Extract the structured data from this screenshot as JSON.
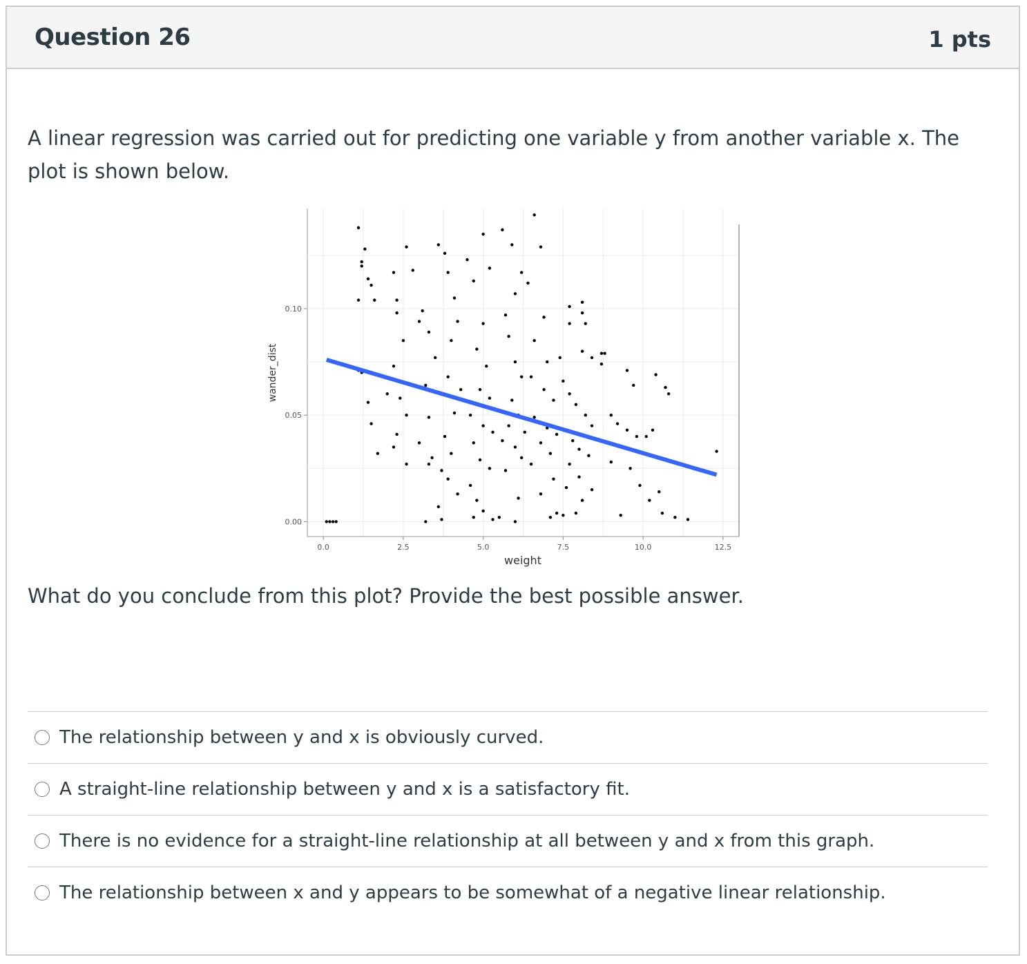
{
  "question": {
    "title": "Question 26",
    "points": "1 pts",
    "prompt": "A linear regression was carried out for predicting one variable y from another variable x. The plot is shown below.",
    "followup": "What do you conclude from this plot? Provide the best possible answer."
  },
  "answers": [
    {
      "label": "The relationship between y and x is obviously curved."
    },
    {
      "label": "A straight-line relationship between y and x is a satisfactory fit."
    },
    {
      "label": "There is no evidence for a straight-line relationship at all between y and x from this graph."
    },
    {
      "label": "The relationship between x and y appears to be somewhat of a negative linear relationship."
    }
  ],
  "chart_data": {
    "type": "scatter",
    "title": "",
    "xlabel": "weight",
    "ylabel": "wander_dist",
    "xlim": [
      -0.5,
      13.0
    ],
    "ylim": [
      -0.007,
      0.147
    ],
    "x_ticks": [
      "0.0",
      "2.5",
      "5.0",
      "7.5",
      "10.0",
      "12.5"
    ],
    "x_tick_values": [
      0.0,
      2.5,
      5.0,
      7.5,
      10.0,
      12.5
    ],
    "y_ticks": [
      "0.00",
      "0.05",
      "0.10"
    ],
    "y_tick_values": [
      0.0,
      0.05,
      0.1
    ],
    "grid": true,
    "regression_line": {
      "x": [
        0.1,
        12.3
      ],
      "y": [
        0.076,
        0.022
      ],
      "color": "#3366ff"
    },
    "points": [
      [
        0.1,
        0.0
      ],
      [
        0.2,
        0.0
      ],
      [
        0.3,
        0.0
      ],
      [
        0.4,
        0.0
      ],
      [
        1.1,
        0.138
      ],
      [
        1.2,
        0.122
      ],
      [
        1.2,
        0.12
      ],
      [
        1.3,
        0.128
      ],
      [
        1.4,
        0.114
      ],
      [
        1.5,
        0.111
      ],
      [
        1.1,
        0.104
      ],
      [
        1.6,
        0.104
      ],
      [
        1.1,
        0.071
      ],
      [
        1.2,
        0.07
      ],
      [
        1.4,
        0.056
      ],
      [
        1.5,
        0.046
      ],
      [
        1.7,
        0.032
      ],
      [
        2.0,
        0.06
      ],
      [
        2.2,
        0.073
      ],
      [
        2.3,
        0.098
      ],
      [
        2.3,
        0.104
      ],
      [
        2.2,
        0.117
      ],
      [
        2.5,
        0.085
      ],
      [
        2.4,
        0.058
      ],
      [
        2.6,
        0.05
      ],
      [
        2.3,
        0.041
      ],
      [
        2.2,
        0.035
      ],
      [
        2.6,
        0.027
      ],
      [
        2.6,
        0.129
      ],
      [
        2.8,
        0.118
      ],
      [
        3.0,
        0.094
      ],
      [
        3.1,
        0.099
      ],
      [
        3.3,
        0.089
      ],
      [
        3.5,
        0.077
      ],
      [
        3.2,
        0.064
      ],
      [
        3.3,
        0.049
      ],
      [
        3.0,
        0.037
      ],
      [
        3.3,
        0.027
      ],
      [
        3.4,
        0.03
      ],
      [
        3.6,
        0.13
      ],
      [
        3.8,
        0.126
      ],
      [
        3.9,
        0.117
      ],
      [
        4.1,
        0.105
      ],
      [
        4.2,
        0.094
      ],
      [
        4.0,
        0.085
      ],
      [
        3.9,
        0.068
      ],
      [
        4.3,
        0.062
      ],
      [
        4.1,
        0.051
      ],
      [
        3.8,
        0.04
      ],
      [
        4.0,
        0.032
      ],
      [
        3.7,
        0.024
      ],
      [
        3.9,
        0.02
      ],
      [
        4.2,
        0.013
      ],
      [
        3.6,
        0.007
      ],
      [
        3.2,
        0.0
      ],
      [
        3.7,
        0.001
      ],
      [
        4.5,
        0.123
      ],
      [
        4.7,
        0.113
      ],
      [
        5.0,
        0.135
      ],
      [
        5.2,
        0.119
      ],
      [
        5.0,
        0.093
      ],
      [
        4.8,
        0.081
      ],
      [
        5.1,
        0.073
      ],
      [
        4.9,
        0.062
      ],
      [
        5.2,
        0.058
      ],
      [
        4.6,
        0.05
      ],
      [
        5.0,
        0.045
      ],
      [
        5.3,
        0.042
      ],
      [
        4.7,
        0.037
      ],
      [
        4.9,
        0.029
      ],
      [
        5.2,
        0.025
      ],
      [
        4.6,
        0.017
      ],
      [
        4.8,
        0.01
      ],
      [
        5.0,
        0.005
      ],
      [
        4.7,
        0.002
      ],
      [
        5.3,
        0.001
      ],
      [
        5.6,
        0.137
      ],
      [
        5.9,
        0.13
      ],
      [
        6.2,
        0.117
      ],
      [
        6.0,
        0.107
      ],
      [
        5.7,
        0.097
      ],
      [
        5.8,
        0.087
      ],
      [
        6.0,
        0.075
      ],
      [
        6.2,
        0.068
      ],
      [
        5.9,
        0.057
      ],
      [
        6.1,
        0.05
      ],
      [
        5.8,
        0.045
      ],
      [
        6.3,
        0.042
      ],
      [
        5.6,
        0.038
      ],
      [
        6.0,
        0.035
      ],
      [
        6.2,
        0.03
      ],
      [
        5.7,
        0.024
      ],
      [
        6.1,
        0.011
      ],
      [
        5.5,
        0.002
      ],
      [
        6.0,
        0.0
      ],
      [
        6.6,
        0.144
      ],
      [
        6.8,
        0.129
      ],
      [
        6.4,
        0.112
      ],
      [
        6.9,
        0.096
      ],
      [
        6.6,
        0.085
      ],
      [
        7.0,
        0.075
      ],
      [
        6.5,
        0.068
      ],
      [
        6.9,
        0.062
      ],
      [
        7.2,
        0.057
      ],
      [
        6.6,
        0.049
      ],
      [
        7.0,
        0.044
      ],
      [
        7.3,
        0.041
      ],
      [
        6.8,
        0.037
      ],
      [
        7.1,
        0.032
      ],
      [
        6.5,
        0.027
      ],
      [
        7.2,
        0.02
      ],
      [
        6.8,
        0.013
      ],
      [
        7.3,
        0.004
      ],
      [
        7.5,
        0.003
      ],
      [
        7.1,
        0.002
      ],
      [
        7.5,
        0.066
      ],
      [
        7.7,
        0.06
      ],
      [
        7.9,
        0.055
      ],
      [
        8.2,
        0.05
      ],
      [
        8.4,
        0.045
      ],
      [
        7.6,
        0.043
      ],
      [
        7.8,
        0.038
      ],
      [
        8.0,
        0.034
      ],
      [
        8.3,
        0.031
      ],
      [
        7.7,
        0.027
      ],
      [
        8.0,
        0.021
      ],
      [
        8.4,
        0.015
      ],
      [
        8.1,
        0.01
      ],
      [
        7.9,
        0.004
      ],
      [
        7.6,
        0.016
      ],
      [
        7.4,
        0.077
      ],
      [
        7.7,
        0.101
      ],
      [
        7.7,
        0.093
      ],
      [
        8.1,
        0.08
      ],
      [
        8.4,
        0.077
      ],
      [
        8.7,
        0.074
      ],
      [
        8.8,
        0.079
      ],
      [
        8.2,
        0.093
      ],
      [
        8.7,
        0.079
      ],
      [
        8.1,
        0.098
      ],
      [
        8.1,
        0.103
      ],
      [
        9.0,
        0.05
      ],
      [
        9.2,
        0.046
      ],
      [
        9.5,
        0.043
      ],
      [
        9.8,
        0.04
      ],
      [
        9.4,
        0.035
      ],
      [
        9.0,
        0.028
      ],
      [
        9.6,
        0.025
      ],
      [
        9.9,
        0.017
      ],
      [
        9.3,
        0.003
      ],
      [
        9.7,
        0.064
      ],
      [
        9.5,
        0.071
      ],
      [
        10.1,
        0.04
      ],
      [
        10.3,
        0.043
      ],
      [
        10.2,
        0.01
      ],
      [
        10.5,
        0.014
      ],
      [
        10.6,
        0.004
      ],
      [
        10.7,
        0.063
      ],
      [
        10.8,
        0.06
      ],
      [
        10.4,
        0.069
      ],
      [
        11.0,
        0.002
      ],
      [
        11.4,
        0.001
      ],
      [
        12.3,
        0.033
      ]
    ]
  }
}
